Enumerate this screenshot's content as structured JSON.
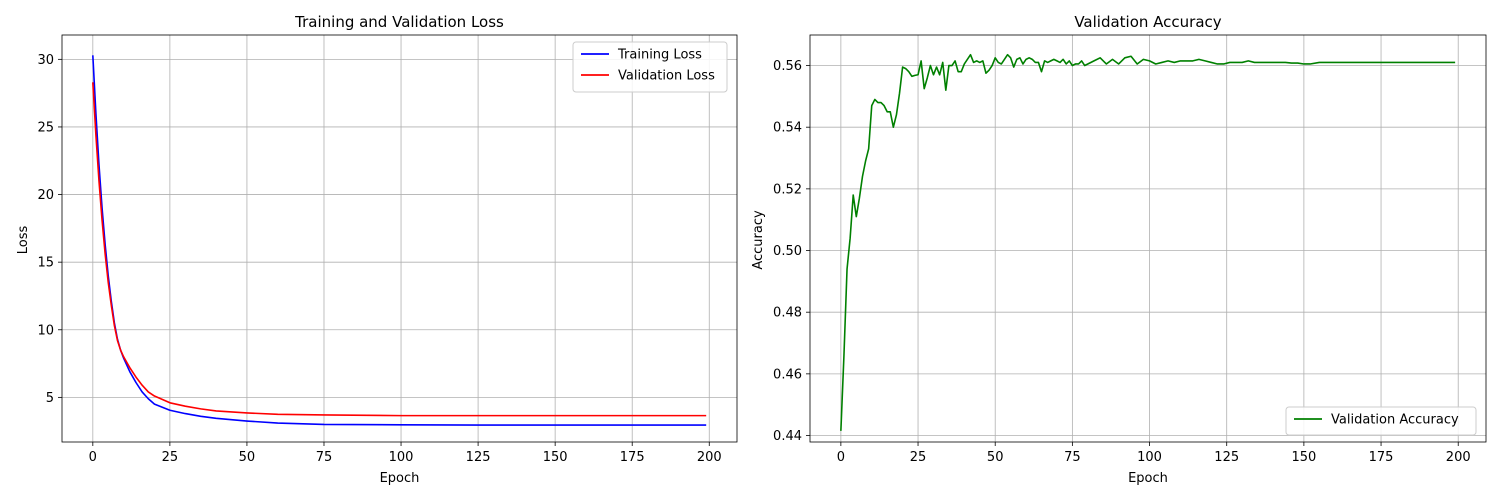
{
  "chart_data": [
    {
      "type": "line",
      "title": "Training and Validation Loss",
      "xlabel": "Epoch",
      "ylabel": "Loss",
      "xlim": [
        -10,
        209
      ],
      "ylim": [
        1.7,
        31.8
      ],
      "xticks": [
        0,
        25,
        50,
        75,
        100,
        125,
        150,
        175,
        200
      ],
      "yticks": [
        5,
        10,
        15,
        20,
        25,
        30
      ],
      "grid": true,
      "legend": "top-right",
      "series": [
        {
          "name": "Training Loss",
          "color": "#0000ff",
          "x": [
            0,
            1,
            2,
            3,
            4,
            5,
            6,
            7,
            8,
            9,
            10,
            12,
            14,
            16,
            18,
            20,
            25,
            30,
            35,
            40,
            50,
            60,
            75,
            100,
            125,
            150,
            175,
            199
          ],
          "y": [
            30.3,
            26.0,
            22.2,
            19.0,
            16.3,
            14.0,
            12.1,
            10.5,
            9.3,
            8.5,
            7.9,
            6.9,
            6.1,
            5.4,
            4.9,
            4.5,
            4.05,
            3.8,
            3.6,
            3.45,
            3.25,
            3.1,
            3.0,
            2.97,
            2.95,
            2.95,
            2.95,
            2.95
          ]
        },
        {
          "name": "Validation Loss",
          "color": "#ff0000",
          "x": [
            0,
            1,
            2,
            3,
            4,
            5,
            6,
            7,
            8,
            9,
            10,
            12,
            14,
            16,
            18,
            20,
            25,
            30,
            35,
            40,
            50,
            60,
            75,
            100,
            125,
            150,
            175,
            199
          ],
          "y": [
            28.3,
            24.4,
            21.0,
            18.1,
            15.6,
            13.5,
            11.8,
            10.3,
            9.2,
            8.5,
            8.0,
            7.2,
            6.5,
            5.9,
            5.4,
            5.1,
            4.6,
            4.35,
            4.15,
            4.0,
            3.85,
            3.75,
            3.7,
            3.65,
            3.65,
            3.65,
            3.65,
            3.65
          ]
        }
      ]
    },
    {
      "type": "line",
      "title": "Validation Accuracy",
      "xlabel": "Epoch",
      "ylabel": "Accuracy",
      "xlim": [
        -10,
        209
      ],
      "ylim": [
        0.4379,
        0.5699
      ],
      "xticks": [
        0,
        25,
        50,
        75,
        100,
        125,
        150,
        175,
        200
      ],
      "yticks": [
        0.44,
        0.46,
        0.48,
        0.5,
        0.52,
        0.54,
        0.56
      ],
      "grid": true,
      "legend": "bottom-right",
      "series": [
        {
          "name": "Validation Accuracy",
          "color": "#008000",
          "x": [
            0,
            1,
            2,
            3,
            4,
            5,
            6,
            7,
            8,
            9,
            10,
            11,
            12,
            13,
            14,
            15,
            16,
            17,
            18,
            19,
            20,
            21,
            22,
            23,
            24,
            25,
            26,
            27,
            28,
            29,
            30,
            31,
            32,
            33,
            34,
            35,
            36,
            37,
            38,
            39,
            40,
            41,
            42,
            43,
            44,
            45,
            46,
            47,
            48,
            49,
            50,
            51,
            52,
            53,
            54,
            55,
            56,
            57,
            58,
            59,
            60,
            61,
            62,
            63,
            64,
            65,
            66,
            67,
            68,
            69,
            70,
            71,
            72,
            73,
            74,
            75,
            76,
            77,
            78,
            79,
            80,
            82,
            84,
            86,
            88,
            90,
            92,
            94,
            96,
            98,
            100,
            102,
            104,
            106,
            108,
            110,
            112,
            114,
            116,
            118,
            120,
            122,
            124,
            126,
            128,
            130,
            132,
            134,
            136,
            138,
            140,
            142,
            144,
            146,
            148,
            150,
            152,
            155,
            160,
            170,
            180,
            190,
            199
          ],
          "y": [
            0.4415,
            0.466,
            0.494,
            0.504,
            0.518,
            0.511,
            0.517,
            0.524,
            0.529,
            0.533,
            0.547,
            0.549,
            0.548,
            0.548,
            0.547,
            0.545,
            0.545,
            0.54,
            0.544,
            0.551,
            0.5595,
            0.559,
            0.558,
            0.5565,
            0.5568,
            0.557,
            0.5615,
            0.5525,
            0.556,
            0.56,
            0.557,
            0.5595,
            0.557,
            0.561,
            0.552,
            0.56,
            0.56,
            0.5615,
            0.558,
            0.558,
            0.5605,
            0.562,
            0.5635,
            0.561,
            0.5615,
            0.561,
            0.5615,
            0.5575,
            0.5585,
            0.56,
            0.5625,
            0.561,
            0.5605,
            0.562,
            0.5635,
            0.5625,
            0.5595,
            0.562,
            0.5625,
            0.5605,
            0.562,
            0.5625,
            0.562,
            0.561,
            0.561,
            0.558,
            0.5615,
            0.561,
            0.5615,
            0.562,
            0.5615,
            0.561,
            0.562,
            0.5605,
            0.5615,
            0.56,
            0.5605,
            0.5605,
            0.5615,
            0.56,
            0.5605,
            0.5615,
            0.5625,
            0.5605,
            0.562,
            0.5605,
            0.5625,
            0.563,
            0.5605,
            0.562,
            0.5615,
            0.5605,
            0.561,
            0.5615,
            0.561,
            0.5615,
            0.5615,
            0.5615,
            0.562,
            0.5615,
            0.561,
            0.5605,
            0.5605,
            0.561,
            0.561,
            0.561,
            0.5615,
            0.561,
            0.561,
            0.561,
            0.561,
            0.561,
            0.561,
            0.5608,
            0.5608,
            0.5605,
            0.5605,
            0.561,
            0.561,
            0.561,
            0.561,
            0.561,
            0.561
          ]
        }
      ]
    }
  ]
}
